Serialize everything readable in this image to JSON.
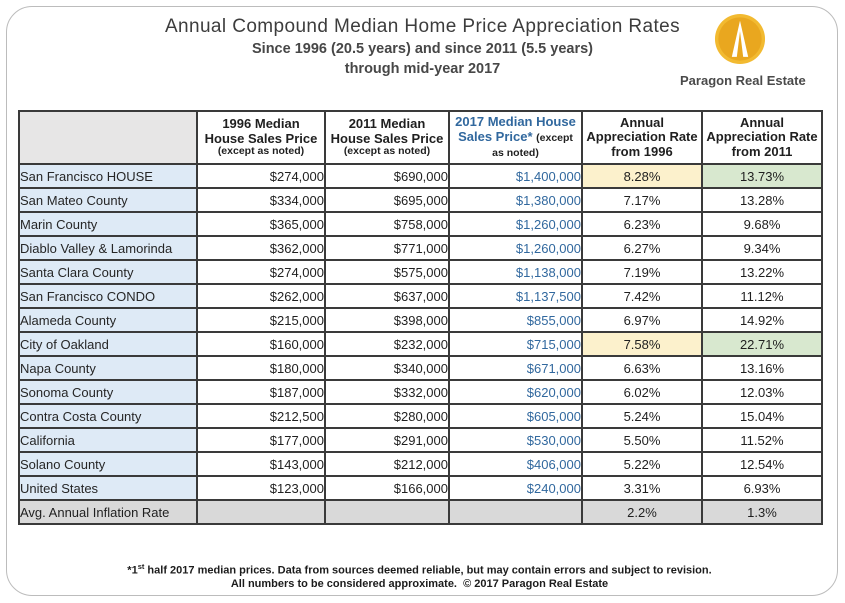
{
  "header": {
    "title": "Annual Compound Median Home Price Appreciation Rates",
    "subtitle_line1": "Since 1996 (20.5 years) and since 2011 (5.5 years)",
    "subtitle_line2": "through mid-year 2017",
    "logo_text": "Paragon Real Estate",
    "logo_icon": "paragon-gold-circle-monument-icon"
  },
  "chart_data": {
    "type": "table",
    "title": "Annual Compound Median Home Price Appreciation Rates",
    "subtitle": "Since 1996 (20.5 years) and since 2011 (5.5 years) through mid-year 2017",
    "column_headers": [
      {
        "main": "",
        "note": ""
      },
      {
        "main": "1996 Median House Sales Price",
        "note": "(except as noted)"
      },
      {
        "main": "2011 Median House Sales Price",
        "note": "(except as noted)"
      },
      {
        "main": "2017 Median House Sales Price*",
        "note": "(except as noted)"
      },
      {
        "main": "Annual Appreciation Rate from 1996",
        "note": ""
      },
      {
        "main": "Annual Appreciation Rate from 2011",
        "note": ""
      }
    ],
    "rows": [
      {
        "label": "San Francisco HOUSE",
        "price_1996": "$274,000",
        "price_2011": "$690,000",
        "price_2017": "$1,400,000",
        "rate_from_1996": "8.28%",
        "rate_from_2011": "13.73%",
        "highlight": true
      },
      {
        "label": "San Mateo County",
        "price_1996": "$334,000",
        "price_2011": "$695,000",
        "price_2017": "$1,380,000",
        "rate_from_1996": "7.17%",
        "rate_from_2011": "13.28%",
        "highlight": false
      },
      {
        "label": "Marin County",
        "price_1996": "$365,000",
        "price_2011": "$758,000",
        "price_2017": "$1,260,000",
        "rate_from_1996": "6.23%",
        "rate_from_2011": "9.68%",
        "highlight": false
      },
      {
        "label": "Diablo Valley & Lamorinda",
        "price_1996": "$362,000",
        "price_2011": "$771,000",
        "price_2017": "$1,260,000",
        "rate_from_1996": "6.27%",
        "rate_from_2011": "9.34%",
        "highlight": false
      },
      {
        "label": "Santa Clara County",
        "price_1996": "$274,000",
        "price_2011": "$575,000",
        "price_2017": "$1,138,000",
        "rate_from_1996": "7.19%",
        "rate_from_2011": "13.22%",
        "highlight": false
      },
      {
        "label": "San Francisco CONDO",
        "price_1996": "$262,000",
        "price_2011": "$637,000",
        "price_2017": "$1,137,500",
        "rate_from_1996": "7.42%",
        "rate_from_2011": "11.12%",
        "highlight": false
      },
      {
        "label": "Alameda County",
        "price_1996": "$215,000",
        "price_2011": "$398,000",
        "price_2017": "$855,000",
        "rate_from_1996": "6.97%",
        "rate_from_2011": "14.92%",
        "highlight": false
      },
      {
        "label": "City of Oakland",
        "price_1996": "$160,000",
        "price_2011": "$232,000",
        "price_2017": "$715,000",
        "rate_from_1996": "7.58%",
        "rate_from_2011": "22.71%",
        "highlight": true
      },
      {
        "label": "Napa County",
        "price_1996": "$180,000",
        "price_2011": "$340,000",
        "price_2017": "$671,000",
        "rate_from_1996": "6.63%",
        "rate_from_2011": "13.16%",
        "highlight": false
      },
      {
        "label": "Sonoma County",
        "price_1996": "$187,000",
        "price_2011": "$332,000",
        "price_2017": "$620,000",
        "rate_from_1996": "6.02%",
        "rate_from_2011": "12.03%",
        "highlight": false
      },
      {
        "label": "Contra Costa County",
        "price_1996": "$212,500",
        "price_2011": "$280,000",
        "price_2017": "$605,000",
        "rate_from_1996": "5.24%",
        "rate_from_2011": "15.04%",
        "highlight": false
      },
      {
        "label": "California",
        "price_1996": "$177,000",
        "price_2011": "$291,000",
        "price_2017": "$530,000",
        "rate_from_1996": "5.50%",
        "rate_from_2011": "11.52%",
        "highlight": false
      },
      {
        "label": "Solano County",
        "price_1996": "$143,000",
        "price_2011": "$212,000",
        "price_2017": "$406,000",
        "rate_from_1996": "5.22%",
        "rate_from_2011": "12.54%",
        "highlight": false
      },
      {
        "label": "United States",
        "price_1996": "$123,000",
        "price_2011": "$166,000",
        "price_2017": "$240,000",
        "rate_from_1996": "3.31%",
        "rate_from_2011": "6.93%",
        "highlight": false
      }
    ],
    "inflation_row": {
      "label": "Avg. Annual Inflation Rate",
      "rate_from_1996": "2.2%",
      "rate_from_2011": "1.3%"
    },
    "highlighted_row_labels": [
      "San Francisco HOUSE",
      "City of Oakland"
    ],
    "layout": {
      "label_col_bg": "#DEEAF6",
      "header_corner_gray": "#E7E6E6",
      "inflation_row_gray": "#D9D9D9",
      "highlight_yellow": "#FCF1CC",
      "highlight_green": "#D8E8CF",
      "accent_blue": "#31689E",
      "grid_border": "#3A3A3A",
      "logo_gold_outer": "#F2BA31",
      "logo_gold_inner": "#E9A71F"
    }
  },
  "footnotes": {
    "line1_prefix": "*1",
    "line1_sup": "st",
    "line1_rest": " half 2017 median prices. Data from sources deemed reliable, but may contain errors and subject to revision.",
    "line2": "All numbers to be considered approximate.  © 2017 Paragon Real Estate"
  }
}
